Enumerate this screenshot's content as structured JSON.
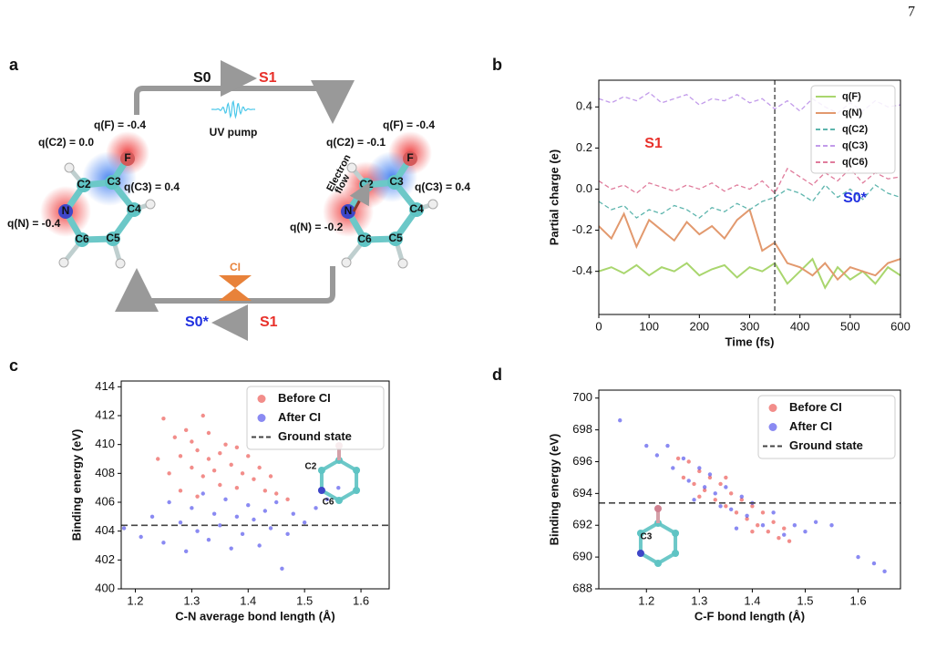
{
  "page_number": "7",
  "diagram": {
    "label": "a",
    "top_arrow": {
      "from": "S0",
      "to": "S1"
    },
    "pump": "UV pump",
    "bottom_arrow": {
      "from": "S1",
      "to": "S0*"
    },
    "ci": "CI",
    "left_molecule": {
      "atoms": [
        "C2",
        "C3",
        "F",
        "N",
        "C4",
        "C5",
        "C6"
      ],
      "charges": [
        "q(F) = -0.4",
        "q(C2) = 0.0",
        "q(C3) = 0.4",
        "q(N) = -0.4"
      ]
    },
    "right_molecule": {
      "atoms": [
        "C2",
        "C3",
        "F",
        "N",
        "C4",
        "C5",
        "C6"
      ],
      "charges": [
        "q(F) = -0.4",
        "q(C2) = -0.1",
        "q(C3) = 0.4",
        "q(N) = -0.2"
      ],
      "flow": [
        "Electron",
        "flow"
      ]
    }
  },
  "chart_data": [
    {
      "type": "line",
      "label": "b",
      "xlabel": "Time (fs)",
      "ylabel": "Partial charge (e)",
      "xlim": [
        0,
        600
      ],
      "ylim": [
        -0.61,
        0.53
      ],
      "xticks": [
        0,
        100,
        200,
        300,
        400,
        500,
        600
      ],
      "yticks": [
        -0.4,
        -0.2,
        {
          "value": 0,
          "label": "0.0"
        },
        0.2,
        0.4
      ],
      "vline": 350,
      "annotations": [
        {
          "text": "S1",
          "color": "#e8302a"
        },
        {
          "text": "S0*",
          "color": "#1f2fe0"
        }
      ],
      "legend": "upper right",
      "x": [
        0,
        25,
        50,
        75,
        100,
        125,
        150,
        175,
        200,
        225,
        250,
        275,
        300,
        325,
        350,
        375,
        400,
        425,
        450,
        475,
        500,
        525,
        550,
        575,
        600
      ],
      "series": [
        {
          "name": "q(F)",
          "color": "#a9d66e",
          "style": "solid",
          "values": [
            -0.4,
            -0.38,
            -0.41,
            -0.37,
            -0.42,
            -0.38,
            -0.4,
            -0.36,
            -0.42,
            -0.39,
            -0.37,
            -0.43,
            -0.38,
            -0.4,
            -0.36,
            -0.46,
            -0.4,
            -0.34,
            -0.48,
            -0.38,
            -0.44,
            -0.4,
            -0.46,
            -0.38,
            -0.42
          ]
        },
        {
          "name": "q(N)",
          "color": "#e2996e",
          "style": "solid",
          "values": [
            -0.18,
            -0.24,
            -0.12,
            -0.28,
            -0.15,
            -0.2,
            -0.25,
            -0.16,
            -0.22,
            -0.18,
            -0.24,
            -0.15,
            -0.1,
            -0.3,
            -0.26,
            -0.36,
            -0.38,
            -0.42,
            -0.36,
            -0.44,
            -0.38,
            -0.4,
            -0.42,
            -0.36,
            -0.34
          ]
        },
        {
          "name": "q(C2)",
          "color": "#5db5ad",
          "style": "dashed",
          "values": [
            -0.06,
            -0.1,
            -0.08,
            -0.14,
            -0.1,
            -0.12,
            -0.08,
            -0.1,
            -0.14,
            -0.09,
            -0.11,
            -0.07,
            -0.1,
            -0.06,
            -0.04,
            0.0,
            -0.02,
            -0.06,
            0.02,
            -0.04,
            0.0,
            -0.05,
            0.02,
            -0.02,
            -0.04
          ]
        },
        {
          "name": "q(C3)",
          "color": "#c29bea",
          "style": "dashed",
          "values": [
            0.44,
            0.42,
            0.45,
            0.43,
            0.47,
            0.42,
            0.44,
            0.46,
            0.41,
            0.44,
            0.43,
            0.46,
            0.42,
            0.44,
            0.39,
            0.43,
            0.38,
            0.44,
            0.4,
            0.37,
            0.42,
            0.38,
            0.43,
            0.4,
            0.41
          ]
        },
        {
          "name": "q(C6)",
          "color": "#e07c9c",
          "style": "dashed",
          "values": [
            0.04,
            0.0,
            0.02,
            -0.02,
            0.03,
            0.01,
            -0.01,
            0.02,
            0.0,
            0.03,
            -0.01,
            0.02,
            0.0,
            0.04,
            -0.02,
            0.1,
            0.06,
            0.02,
            0.08,
            0.04,
            0.1,
            0.03,
            0.08,
            0.05,
            0.06
          ]
        }
      ]
    },
    {
      "type": "scatter",
      "label": "c",
      "xlabel": "C-N average bond length (Å)",
      "ylabel": "Binding energy (eV)",
      "xlim": [
        1.175,
        1.65
      ],
      "ylim": [
        400,
        414.4
      ],
      "xticks": [
        1.2,
        1.3,
        1.4,
        1.5,
        1.6
      ],
      "yticks": [
        400,
        402,
        404,
        406,
        408,
        410,
        412,
        414
      ],
      "hline": {
        "value": 404.4,
        "name": "Ground state",
        "color": "#444444"
      },
      "legend": "upper right",
      "inset_labels": [
        "C2",
        "C6"
      ],
      "series": [
        {
          "name": "Before CI",
          "color": "#e8302a",
          "x": [
            1.25,
            1.27,
            1.28,
            1.29,
            1.3,
            1.3,
            1.31,
            1.32,
            1.32,
            1.33,
            1.33,
            1.34,
            1.35,
            1.35,
            1.36,
            1.37,
            1.38,
            1.38,
            1.39,
            1.4,
            1.41,
            1.42,
            1.43,
            1.44,
            1.45,
            1.24,
            1.26,
            1.28,
            1.31,
            1.47
          ],
          "values": [
            411.8,
            410.5,
            409.2,
            411.0,
            408.4,
            410.2,
            409.6,
            412.0,
            407.8,
            409.0,
            410.8,
            408.2,
            409.4,
            407.2,
            410.0,
            408.6,
            409.8,
            407.0,
            408.0,
            409.2,
            407.6,
            408.4,
            406.8,
            407.8,
            406.6,
            409.0,
            408.0,
            406.8,
            406.4,
            406.2
          ]
        },
        {
          "name": "After CI",
          "color": "#2a2ae8",
          "x": [
            1.18,
            1.21,
            1.23,
            1.25,
            1.26,
            1.28,
            1.29,
            1.3,
            1.31,
            1.32,
            1.33,
            1.34,
            1.35,
            1.36,
            1.37,
            1.38,
            1.39,
            1.4,
            1.41,
            1.42,
            1.43,
            1.44,
            1.45,
            1.46,
            1.47,
            1.48,
            1.5,
            1.52,
            1.54,
            1.56
          ],
          "values": [
            404.2,
            403.6,
            405.0,
            403.2,
            406.0,
            404.6,
            402.6,
            405.6,
            404.0,
            406.6,
            403.4,
            405.2,
            404.4,
            406.2,
            402.8,
            405.0,
            403.8,
            405.8,
            404.8,
            403.0,
            405.4,
            404.2,
            406.0,
            401.4,
            403.8,
            405.2,
            404.6,
            405.6,
            406.2,
            407.0
          ]
        }
      ]
    },
    {
      "type": "scatter",
      "label": "d",
      "xlabel": "C-F bond length (Å)",
      "ylabel": "Binding energy (eV)",
      "xlim": [
        1.11,
        1.68
      ],
      "ylim": [
        688,
        700.5
      ],
      "xticks": [
        1.2,
        1.3,
        1.4,
        1.5,
        1.6
      ],
      "yticks": [
        688,
        690,
        692,
        694,
        696,
        698,
        700
      ],
      "hline": {
        "value": 693.4,
        "name": "Ground state",
        "color": "#444444"
      },
      "legend": "upper right",
      "inset_labels": [
        "C3"
      ],
      "series": [
        {
          "name": "Before CI",
          "color": "#e8302a",
          "x": [
            1.26,
            1.27,
            1.28,
            1.29,
            1.3,
            1.31,
            1.32,
            1.33,
            1.34,
            1.35,
            1.36,
            1.37,
            1.38,
            1.39,
            1.4,
            1.41,
            1.42,
            1.43,
            1.44,
            1.45,
            1.46,
            1.47,
            1.3,
            1.35,
            1.4
          ],
          "values": [
            696.2,
            695.0,
            696.0,
            694.6,
            695.4,
            694.2,
            695.0,
            693.6,
            694.6,
            693.2,
            694.0,
            692.8,
            693.6,
            692.4,
            693.2,
            692.0,
            692.8,
            691.6,
            692.2,
            691.2,
            691.8,
            691.0,
            693.8,
            695.0,
            691.6
          ]
        },
        {
          "name": "After CI",
          "color": "#2a2ae8",
          "x": [
            1.15,
            1.2,
            1.22,
            1.24,
            1.25,
            1.27,
            1.28,
            1.3,
            1.31,
            1.32,
            1.33,
            1.34,
            1.35,
            1.36,
            1.38,
            1.39,
            1.4,
            1.42,
            1.44,
            1.46,
            1.48,
            1.5,
            1.52,
            1.55,
            1.6,
            1.63,
            1.65,
            1.29,
            1.37
          ],
          "values": [
            698.6,
            697.0,
            696.4,
            697.0,
            695.6,
            696.2,
            694.8,
            695.6,
            694.4,
            695.2,
            694.0,
            693.2,
            694.4,
            693.0,
            693.8,
            692.6,
            693.4,
            692.0,
            692.8,
            691.4,
            692.0,
            691.6,
            692.2,
            692.0,
            690.0,
            689.6,
            689.1,
            693.6,
            691.8
          ]
        }
      ]
    }
  ]
}
